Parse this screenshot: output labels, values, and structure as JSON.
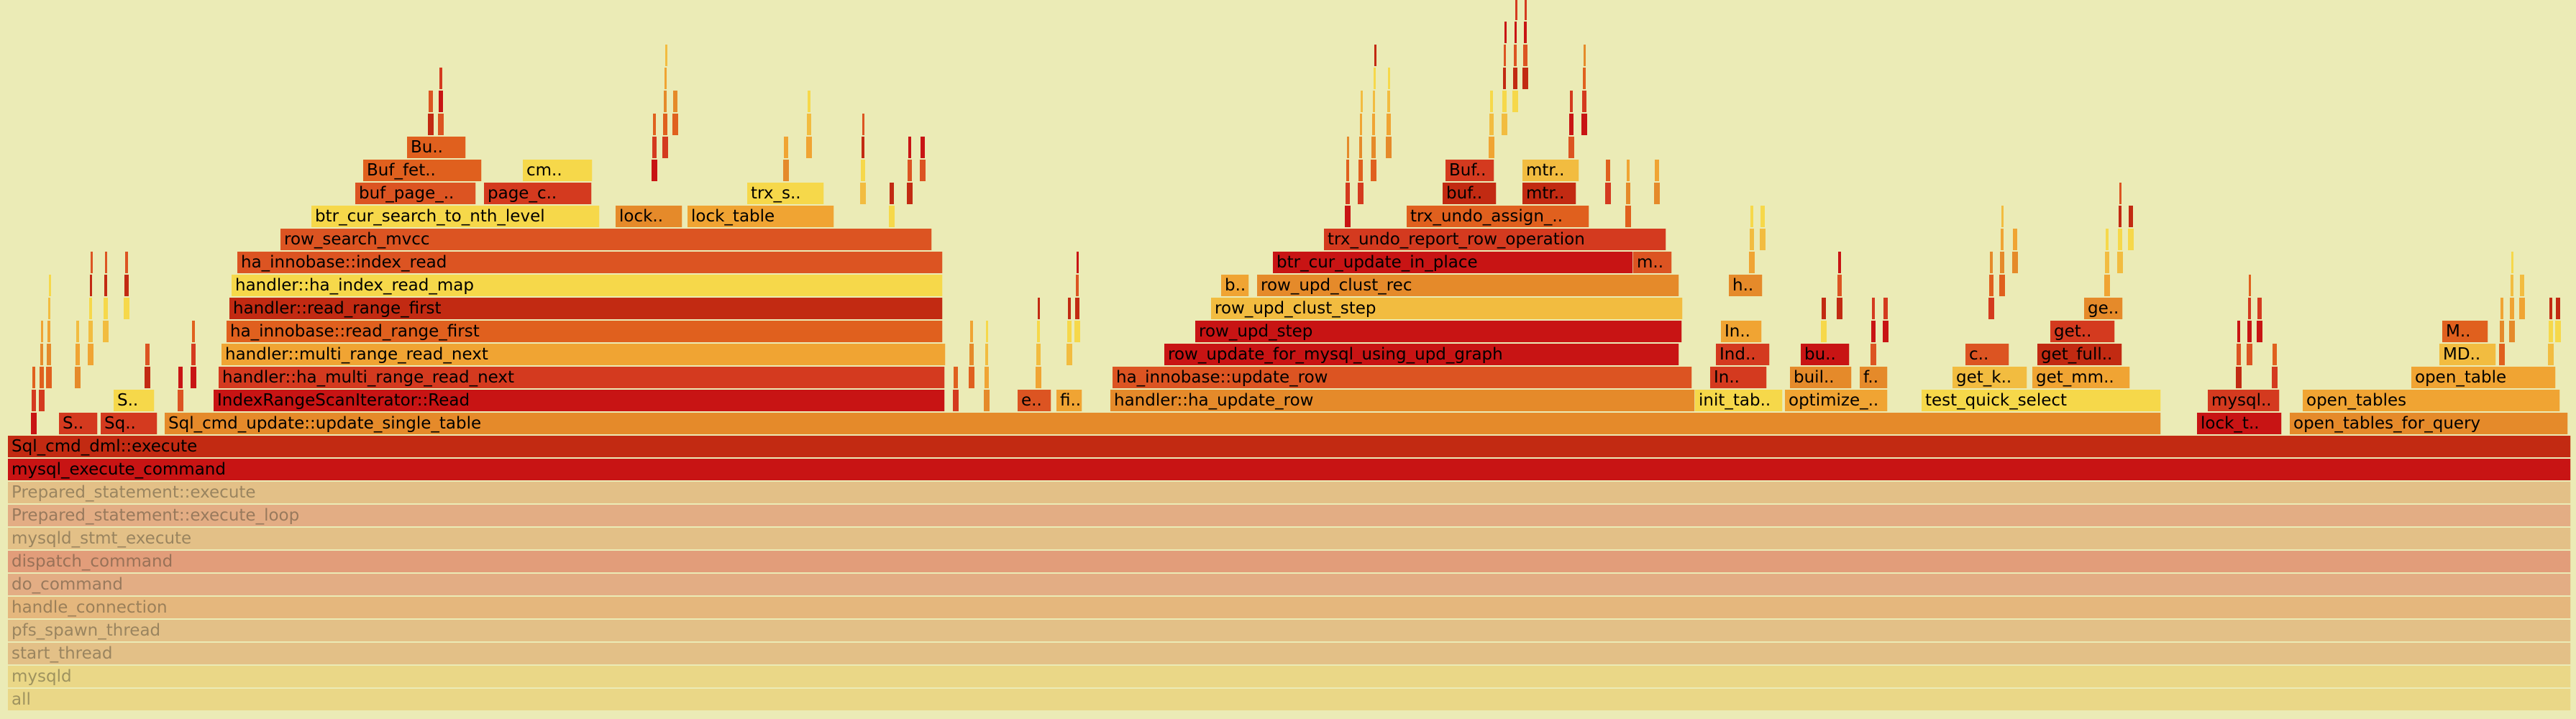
{
  "chart_data": {
    "type": "flamegraph",
    "x_unit": "percent of total samples",
    "palette": [
      "#c81414",
      "#d43a1f",
      "#e0601e",
      "#e58a2a",
      "#f0a433",
      "#f2bc40",
      "#f6d84a",
      "#c22a12",
      "#dc5422"
    ],
    "faded_palette": [
      "#f7e27a",
      "#ead27a",
      "#e2b47a",
      "#dd9a6e",
      "#e4a96e",
      "#e0886a",
      "#e19c76"
    ],
    "frames": [
      {
        "name": "all",
        "x": 0.3,
        "w": 99.5,
        "depth": 0,
        "label": "all"
      },
      {
        "name": "mysqld",
        "x": 0.3,
        "w": 99.5,
        "depth": 1,
        "label": "mysqld"
      },
      {
        "name": "start_thread",
        "x": 0.3,
        "w": 99.5,
        "depth": 2,
        "label": "start_thread"
      },
      {
        "name": "pfs_spawn_thread",
        "x": 0.3,
        "w": 99.5,
        "depth": 3,
        "label": "pfs_spawn_thread"
      },
      {
        "name": "handle_connection",
        "x": 0.3,
        "w": 99.5,
        "depth": 4,
        "label": "handle_connection"
      },
      {
        "name": "do_command",
        "x": 0.3,
        "w": 99.5,
        "depth": 5,
        "label": "do_command"
      },
      {
        "name": "dispatch_command",
        "x": 0.3,
        "w": 99.5,
        "depth": 6,
        "label": "dispatch_command"
      },
      {
        "name": "mysqld_stmt_execute",
        "x": 0.3,
        "w": 99.5,
        "depth": 7,
        "label": "mysqld_stmt_execute"
      },
      {
        "name": "Prepared_statement::execute_loop",
        "x": 0.3,
        "w": 99.5,
        "depth": 8,
        "label": "Prepared_statement::execute_loop"
      },
      {
        "name": "Prepared_statement::execute",
        "x": 0.3,
        "w": 99.5,
        "depth": 9,
        "label": "Prepared_statement::execute"
      },
      {
        "name": "mysql_execute_command",
        "x": 0.3,
        "w": 99.5,
        "depth": 10,
        "label": "mysql_execute_command"
      },
      {
        "name": "Sql_cmd_dml::execute",
        "x": 0.3,
        "w": 99.5,
        "depth": 11,
        "label": "Sql_cmd_dml::execute"
      },
      {
        "name": "S..",
        "x": 2.3,
        "w": 1.5,
        "depth": 12,
        "label": "S.."
      },
      {
        "name": "Sq..",
        "x": 3.9,
        "w": 2.2,
        "depth": 12,
        "label": "Sq.."
      },
      {
        "name": "Sql_cmd_update::update_single_table",
        "x": 6.4,
        "w": 77.5,
        "depth": 12,
        "label": "Sql_cmd_update::update_single_table"
      },
      {
        "name": "lock_t..",
        "x": 85.3,
        "w": 3.3,
        "depth": 12,
        "label": "lock_t.."
      },
      {
        "name": "open_tables_for_query",
        "x": 88.9,
        "w": 10.8,
        "depth": 12,
        "label": "open_tables_for_query"
      },
      {
        "name": "S..",
        "x": 4.4,
        "w": 1.6,
        "depth": 13,
        "label": "S.."
      },
      {
        "name": "IndexRangeScanIterator::Read",
        "x": 8.3,
        "w": 28.4,
        "depth": 13,
        "label": "IndexRangeScanIterator::Read"
      },
      {
        "name": "e..",
        "x": 39.5,
        "w": 1.3,
        "depth": 13,
        "label": "e.."
      },
      {
        "name": "fi..",
        "x": 41.0,
        "w": 1.0,
        "depth": 13,
        "label": "fi.."
      },
      {
        "name": "handler::ha_update_row",
        "x": 43.1,
        "w": 22.7,
        "depth": 13,
        "label": "handler::ha_update_row"
      },
      {
        "name": "init_tab..",
        "x": 65.8,
        "w": 3.4,
        "depth": 13,
        "label": "init_tab.."
      },
      {
        "name": "optimize_..",
        "x": 69.3,
        "w": 4.0,
        "depth": 13,
        "label": "optimize_.."
      },
      {
        "name": "test_quick_select",
        "x": 74.6,
        "w": 9.3,
        "depth": 13,
        "label": "test_quick_select"
      },
      {
        "name": "mysql..",
        "x": 85.7,
        "w": 2.8,
        "depth": 13,
        "label": "mysql.."
      },
      {
        "name": "open_tables",
        "x": 89.4,
        "w": 10.0,
        "depth": 13,
        "label": "open_tables"
      },
      {
        "name": "handler::ha_multi_range_read_next",
        "x": 8.5,
        "w": 28.2,
        "depth": 14,
        "label": "handler::ha_multi_range_read_next"
      },
      {
        "name": "ha_innobase::update_row",
        "x": 43.2,
        "w": 22.5,
        "depth": 14,
        "label": "ha_innobase::update_row"
      },
      {
        "name": "In..",
        "x": 66.4,
        "w": 2.2,
        "depth": 14,
        "label": "In.."
      },
      {
        "name": "buil..",
        "x": 69.5,
        "w": 2.4,
        "depth": 14,
        "label": "buil.."
      },
      {
        "name": "f..",
        "x": 72.2,
        "w": 1.1,
        "depth": 14,
        "label": "f.."
      },
      {
        "name": "get_k..",
        "x": 75.8,
        "w": 2.9,
        "depth": 14,
        "label": "get_k.."
      },
      {
        "name": "get_mm..",
        "x": 78.9,
        "w": 3.8,
        "depth": 14,
        "label": "get_mm.."
      },
      {
        "name": "open_table",
        "x": 93.6,
        "w": 5.6,
        "depth": 14,
        "label": "open_table"
      },
      {
        "name": "handler::multi_range_read_next",
        "x": 8.6,
        "w": 28.1,
        "depth": 15,
        "label": "handler::multi_range_read_next"
      },
      {
        "name": "row_update_for_mysql_using_upd_graph",
        "x": 45.2,
        "w": 20.0,
        "depth": 15,
        "label": "row_update_for_mysql_using_upd_graph"
      },
      {
        "name": "Ind..",
        "x": 66.6,
        "w": 2.1,
        "depth": 15,
        "label": "Ind.."
      },
      {
        "name": "bu..",
        "x": 69.9,
        "w": 1.9,
        "depth": 15,
        "label": "bu.."
      },
      {
        "name": "c..",
        "x": 76.3,
        "w": 1.7,
        "depth": 15,
        "label": "c.."
      },
      {
        "name": "get_full..",
        "x": 79.1,
        "w": 3.3,
        "depth": 15,
        "label": "get_full.."
      },
      {
        "name": "MD..",
        "x": 94.7,
        "w": 2.2,
        "depth": 15,
        "label": "MD.."
      },
      {
        "name": "ha_innobase::read_range_first",
        "x": 8.8,
        "w": 27.8,
        "depth": 16,
        "label": "ha_innobase::read_range_first"
      },
      {
        "name": "row_upd_step",
        "x": 46.4,
        "w": 18.9,
        "depth": 16,
        "label": "row_upd_step"
      },
      {
        "name": "In..",
        "x": 66.8,
        "w": 1.6,
        "depth": 16,
        "label": "In.."
      },
      {
        "name": "get..",
        "x": 79.6,
        "w": 2.5,
        "depth": 16,
        "label": "get.."
      },
      {
        "name": "M..",
        "x": 94.8,
        "w": 1.8,
        "depth": 16,
        "label": "M.."
      },
      {
        "name": "handler::read_range_first",
        "x": 8.9,
        "w": 27.7,
        "depth": 17,
        "label": "handler::read_range_first"
      },
      {
        "name": "row_upd_clust_step",
        "x": 47.0,
        "w": 18.3,
        "depth": 17,
        "label": "row_upd_clust_step"
      },
      {
        "name": "ge..",
        "x": 80.9,
        "w": 1.5,
        "depth": 17,
        "label": "ge.."
      },
      {
        "name": "handler::ha_index_read_map",
        "x": 9.0,
        "w": 27.6,
        "depth": 18,
        "label": "handler::ha_index_read_map"
      },
      {
        "name": "b..",
        "x": 47.4,
        "w": 1.1,
        "depth": 18,
        "label": "b.."
      },
      {
        "name": "row_upd_clust_rec",
        "x": 48.8,
        "w": 16.4,
        "depth": 18,
        "label": "row_upd_clust_rec"
      },
      {
        "name": "h..",
        "x": 67.1,
        "w": 1.3,
        "depth": 18,
        "label": "h.."
      },
      {
        "name": "ha_innobase::index_read",
        "x": 9.2,
        "w": 27.4,
        "depth": 19,
        "label": "ha_innobase::index_read"
      },
      {
        "name": "btr_cur_update_in_place",
        "x": 49.4,
        "w": 14.0,
        "depth": 19,
        "label": "btr_cur_update_in_place"
      },
      {
        "name": "m..",
        "x": 63.4,
        "w": 1.5,
        "depth": 19,
        "label": "m.."
      },
      {
        "name": "row_search_mvcc",
        "x": 10.9,
        "w": 25.3,
        "depth": 20,
        "label": "row_search_mvcc"
      },
      {
        "name": "trx_undo_report_row_operation",
        "x": 51.4,
        "w": 13.3,
        "depth": 20,
        "label": "trx_undo_report_row_operation"
      },
      {
        "name": "btr_cur_search_to_nth_level",
        "x": 12.1,
        "w": 11.2,
        "depth": 21,
        "label": "btr_cur_search_to_nth_level"
      },
      {
        "name": "lock..",
        "x": 23.9,
        "w": 2.6,
        "depth": 21,
        "label": "lock.."
      },
      {
        "name": "lock_table",
        "x": 26.7,
        "w": 5.7,
        "depth": 21,
        "label": "lock_table"
      },
      {
        "name": "trx_undo_assign_..",
        "x": 54.6,
        "w": 7.1,
        "depth": 21,
        "label": "trx_undo_assign_.."
      },
      {
        "name": "buf_page_..",
        "x": 13.8,
        "w": 4.7,
        "depth": 22,
        "label": "buf_page_.."
      },
      {
        "name": "page_c..",
        "x": 18.8,
        "w": 4.2,
        "depth": 22,
        "label": "page_c.."
      },
      {
        "name": "trx_s..",
        "x": 29.0,
        "w": 3.0,
        "depth": 22,
        "label": "trx_s.."
      },
      {
        "name": "buf..",
        "x": 56.0,
        "w": 2.1,
        "depth": 22,
        "label": "buf.."
      },
      {
        "name": "mtr..",
        "x": 59.1,
        "w": 2.1,
        "depth": 22,
        "label": "mtr.."
      },
      {
        "name": "Buf_fet..",
        "x": 14.1,
        "w": 4.6,
        "depth": 23,
        "label": "Buf_fet.."
      },
      {
        "name": "cm..",
        "x": 20.3,
        "w": 2.7,
        "depth": 23,
        "label": "cm.."
      },
      {
        "name": "Buf..",
        "x": 56.1,
        "w": 1.9,
        "depth": 23,
        "label": "Buf.."
      },
      {
        "name": "mtr..",
        "x": 59.1,
        "w": 2.2,
        "depth": 23,
        "label": "mtr.."
      },
      {
        "name": "Bu..",
        "x": 15.8,
        "w": 2.3,
        "depth": 24,
        "label": "Bu.."
      }
    ]
  }
}
